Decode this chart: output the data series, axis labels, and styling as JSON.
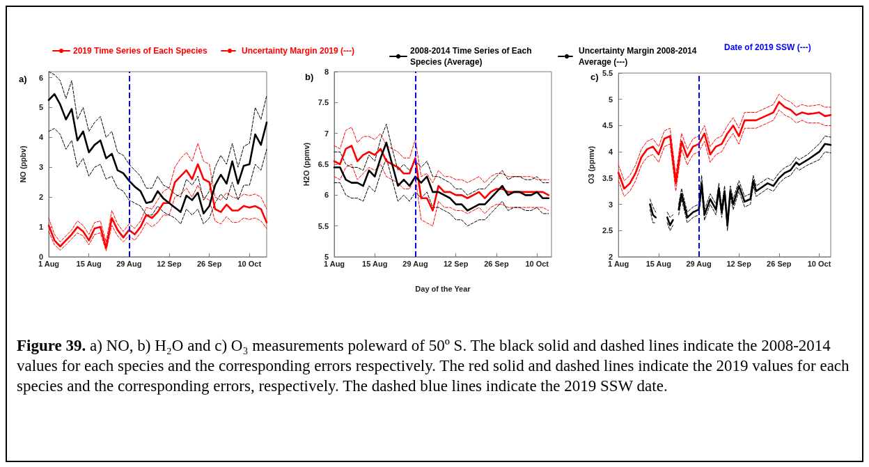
{
  "chart_data": [
    {
      "type": "line",
      "title": "a)",
      "ylabel": "NO (ppbv)",
      "legend": "top",
      "grid": false,
      "x": [
        "--08-01",
        "--08-03",
        "--08-05",
        "--08-07",
        "--08-09",
        "--08-11",
        "--08-13",
        "--08-15",
        "--08-17",
        "--08-19",
        "--08-21",
        "--08-23",
        "--08-25",
        "--08-27",
        "--08-29",
        "--08-31",
        "--09-02",
        "--09-04",
        "--09-06",
        "--09-08",
        "--09-10",
        "--09-12",
        "--09-14",
        "--09-16",
        "--09-18",
        "--09-20",
        "--09-22",
        "--09-24",
        "--09-26",
        "--09-28",
        "--09-30",
        "--10-02",
        "--10-04",
        "--10-06",
        "--10-08",
        "--10-10",
        "--10-12",
        "--10-14",
        "--10-16"
      ],
      "series": [
        {
          "name": "2019 Time Series of Each Species",
          "color": "#ff0000",
          "line_style": "solid",
          "values": [
            1.05,
            0.55,
            0.35,
            0.55,
            0.75,
            1.0,
            0.85,
            0.55,
            0.95,
            1.0,
            0.3,
            1.3,
            0.9,
            0.65,
            0.9,
            0.75,
            1.0,
            1.4,
            1.3,
            1.5,
            1.8,
            1.8,
            2.5,
            2.7,
            2.9,
            2.6,
            3.1,
            2.6,
            2.5,
            1.6,
            1.5,
            1.75,
            1.55,
            1.55,
            1.7,
            1.65,
            1.7,
            1.6,
            1.15
          ]
        },
        {
          "name": "Uncertainty Margin 2019 (---)",
          "color": "#ff0000",
          "line_style": "dashed",
          "values": [
            1.3,
            0.75,
            0.5,
            0.7,
            0.9,
            1.2,
            1.05,
            0.75,
            1.15,
            1.2,
            0.5,
            1.55,
            1.1,
            0.85,
            1.1,
            0.95,
            1.2,
            1.65,
            1.6,
            1.9,
            2.2,
            2.3,
            3.0,
            3.3,
            3.5,
            3.2,
            3.8,
            3.2,
            3.1,
            2.0,
            1.9,
            2.15,
            2.0,
            1.95,
            2.1,
            2.05,
            2.1,
            2.0,
            1.6
          ]
        },
        {
          "color": "#ff0000",
          "line_style": "dashed",
          "values": [
            0.85,
            0.4,
            0.22,
            0.4,
            0.6,
            0.8,
            0.7,
            0.4,
            0.75,
            0.8,
            0.2,
            1.05,
            0.7,
            0.5,
            0.7,
            0.55,
            0.8,
            1.15,
            1.0,
            1.15,
            1.4,
            1.4,
            2.0,
            2.1,
            2.3,
            2.0,
            2.4,
            2.0,
            1.9,
            1.2,
            1.1,
            1.35,
            1.15,
            1.15,
            1.3,
            1.25,
            1.3,
            1.2,
            0.95
          ]
        },
        {
          "name": "2008-2014 Time Series of Each Species (Average)",
          "color": "#000000",
          "line_style": "solid",
          "values": [
            5.25,
            5.45,
            5.1,
            4.6,
            4.95,
            3.9,
            4.2,
            3.5,
            3.75,
            3.9,
            3.3,
            3.45,
            2.9,
            2.8,
            2.55,
            2.35,
            2.2,
            1.8,
            1.85,
            2.2,
            1.95,
            1.8,
            1.65,
            1.5,
            2.05,
            1.9,
            2.15,
            1.45,
            1.7,
            2.4,
            2.75,
            2.45,
            3.2,
            2.45,
            3.05,
            3.1,
            4.1,
            3.75,
            4.5
          ]
        },
        {
          "name": "Uncertainty Margin 2008-2014 Average (---)",
          "color": "#000000",
          "line_style": "dashed",
          "values": [
            6.2,
            6.1,
            5.9,
            5.3,
            5.9,
            4.6,
            5.0,
            4.2,
            4.5,
            4.7,
            4.0,
            4.2,
            3.5,
            3.4,
            3.1,
            2.9,
            2.7,
            2.3,
            2.3,
            2.7,
            2.4,
            2.3,
            2.1,
            2.0,
            2.6,
            2.4,
            2.7,
            1.9,
            2.2,
            3.0,
            3.4,
            3.1,
            3.8,
            3.0,
            3.7,
            3.8,
            5.0,
            4.6,
            5.4
          ]
        },
        {
          "color": "#000000",
          "line_style": "dashed",
          "values": [
            4.2,
            4.3,
            4.1,
            3.6,
            3.9,
            3.0,
            3.3,
            2.7,
            3.0,
            3.1,
            2.6,
            2.7,
            2.3,
            2.2,
            1.9,
            1.8,
            1.7,
            1.4,
            1.4,
            1.7,
            1.5,
            1.4,
            1.3,
            1.1,
            1.6,
            1.4,
            1.6,
            1.1,
            1.3,
            1.8,
            2.1,
            1.9,
            2.5,
            1.9,
            2.4,
            2.4,
            3.1,
            2.9,
            3.6
          ]
        }
      ],
      "xlim": [
        "--08-01",
        "--10-16"
      ],
      "xticks": [
        {
          "value": "--08-01",
          "label": "1 Aug"
        },
        {
          "value": "--08-15",
          "label": "15 Aug"
        },
        {
          "value": "--08-29",
          "label": "29 Aug"
        },
        {
          "value": "--09-12",
          "label": "12 Sep"
        },
        {
          "value": "--09-26",
          "label": "26 Sep"
        },
        {
          "value": "--10-10",
          "label": "10 Oct"
        }
      ],
      "ylim": [
        0,
        6.2
      ],
      "yticks": [
        0,
        1,
        2,
        3,
        4,
        5,
        6
      ],
      "ref_lines": [
        {
          "axis": "x",
          "value": "--08-29",
          "label": "Date of 2019 SSW (---)",
          "color": "#0000ff",
          "line_style": "dashed"
        }
      ],
      "annotations": [
        "Figure 39.",
        "a) NO, b) H₂O and c) O₃ measurements poleward of 50º S. The black solid and dashed lines indicate the 2008-2014 values for each species and the corresponding errors respectively. The red solid and dashed lines indicate the 2019 values for each species and the corresponding errors, respectively. The dashed blue lines indicate the 2019 SSW date."
      ]
    },
    {
      "type": "line",
      "title": "b)",
      "ylabel": "H2O (ppmv)",
      "xlabel": "Day of the Year",
      "grid": false,
      "x": [
        "--08-01",
        "--08-03",
        "--08-05",
        "--08-07",
        "--08-09",
        "--08-11",
        "--08-13",
        "--08-15",
        "--08-17",
        "--08-19",
        "--08-21",
        "--08-23",
        "--08-25",
        "--08-27",
        "--08-29",
        "--08-31",
        "--09-02",
        "--09-04",
        "--09-06",
        "--09-08",
        "--09-10",
        "--09-12",
        "--09-14",
        "--09-16",
        "--09-18",
        "--09-20",
        "--09-22",
        "--09-24",
        "--09-26",
        "--09-28",
        "--09-30",
        "--10-02",
        "--10-04",
        "--10-06",
        "--10-08",
        "--10-10",
        "--10-12",
        "--10-14"
      ],
      "series": [
        {
          "color": "#ff0000",
          "line_style": "solid",
          "values": [
            6.55,
            6.5,
            6.75,
            6.8,
            6.55,
            6.65,
            6.7,
            6.65,
            6.75,
            6.55,
            6.5,
            6.45,
            6.35,
            6.35,
            6.6,
            5.95,
            5.95,
            5.75,
            6.15,
            6.05,
            6.05,
            6.0,
            6.0,
            5.95,
            6.0,
            6.05,
            5.95,
            6.05,
            6.1,
            6.1,
            6.05,
            6.05,
            6.05,
            6.05,
            6.05,
            6.05,
            6.05,
            6.0
          ]
        },
        {
          "color": "#ff0000",
          "line_style": "dashed",
          "values": [
            6.8,
            6.75,
            7.05,
            7.1,
            6.85,
            6.95,
            6.95,
            6.9,
            7.0,
            6.8,
            6.75,
            6.7,
            6.6,
            6.6,
            6.9,
            6.3,
            6.35,
            6.2,
            6.4,
            6.3,
            6.3,
            6.25,
            6.25,
            6.2,
            6.25,
            6.3,
            6.2,
            6.3,
            6.35,
            6.35,
            6.3,
            6.3,
            6.3,
            6.3,
            6.3,
            6.25,
            6.25,
            6.25
          ]
        },
        {
          "color": "#ff0000",
          "line_style": "dashed",
          "values": [
            6.3,
            6.25,
            6.45,
            6.5,
            6.25,
            6.35,
            6.45,
            6.4,
            6.5,
            6.3,
            6.25,
            6.2,
            6.1,
            6.1,
            6.3,
            5.6,
            5.55,
            5.5,
            5.9,
            5.8,
            5.8,
            5.75,
            5.75,
            5.7,
            5.75,
            5.8,
            5.7,
            5.8,
            5.85,
            5.85,
            5.8,
            5.8,
            5.8,
            5.8,
            5.8,
            5.8,
            5.8,
            5.75
          ]
        },
        {
          "color": "#000000",
          "line_style": "solid",
          "values": [
            6.45,
            6.45,
            6.25,
            6.2,
            6.2,
            6.15,
            6.4,
            6.3,
            6.6,
            6.85,
            6.5,
            6.15,
            6.25,
            6.15,
            6.3,
            6.2,
            6.3,
            6.05,
            6.05,
            6.0,
            5.95,
            5.85,
            5.85,
            5.75,
            5.8,
            5.85,
            5.85,
            5.95,
            6.05,
            6.15,
            6.0,
            6.05,
            6.05,
            6.0,
            6.0,
            6.05,
            5.95,
            5.95
          ]
        },
        {
          "color": "#000000",
          "line_style": "dashed",
          "values": [
            6.7,
            6.7,
            6.5,
            6.45,
            6.45,
            6.4,
            6.65,
            6.55,
            6.9,
            7.15,
            6.75,
            6.4,
            6.5,
            6.4,
            6.55,
            6.45,
            6.55,
            6.3,
            6.3,
            6.25,
            6.2,
            6.1,
            6.1,
            6.0,
            6.05,
            6.1,
            6.1,
            6.2,
            6.3,
            6.4,
            6.25,
            6.3,
            6.3,
            6.25,
            6.25,
            6.3,
            6.2,
            6.2
          ]
        },
        {
          "color": "#000000",
          "line_style": "dashed",
          "values": [
            6.2,
            6.2,
            6.0,
            5.95,
            5.95,
            5.9,
            6.15,
            6.05,
            6.35,
            6.6,
            6.25,
            5.9,
            6.0,
            5.9,
            6.05,
            5.95,
            6.05,
            5.8,
            5.8,
            5.75,
            5.7,
            5.6,
            5.6,
            5.5,
            5.55,
            5.6,
            5.6,
            5.7,
            5.8,
            5.9,
            5.75,
            5.8,
            5.8,
            5.75,
            5.75,
            5.8,
            5.7,
            5.7
          ]
        }
      ],
      "xlim": [
        "--08-01",
        "--10-15"
      ],
      "xticks": [
        {
          "value": "--08-01",
          "label": "1 Aug"
        },
        {
          "value": "--08-15",
          "label": "15 Aug"
        },
        {
          "value": "--08-29",
          "label": "29 Aug"
        },
        {
          "value": "--09-12",
          "label": "12 Sep"
        },
        {
          "value": "--09-26",
          "label": "26 Sep"
        },
        {
          "value": "--10-10",
          "label": "10 Oct"
        }
      ],
      "ylim": [
        5,
        8
      ],
      "yticks": [
        5,
        5.5,
        6,
        6.5,
        7,
        7.5,
        8
      ],
      "ref_lines": [
        {
          "axis": "x",
          "value": "--08-29",
          "color": "#0000ff",
          "line_style": "dashed"
        }
      ]
    },
    {
      "type": "line",
      "title": "c)",
      "ylabel": "O3 (ppmv)",
      "grid": false,
      "x": [
        "--08-01",
        "--08-03",
        "--08-05",
        "--08-07",
        "--08-09",
        "--08-11",
        "--08-13",
        "--08-15",
        "--08-17",
        "--08-19",
        "--08-21",
        "--08-23",
        "--08-25",
        "--08-27",
        "--08-29",
        "--08-31",
        "--09-02",
        "--09-04",
        "--09-06",
        "--09-08",
        "--09-10",
        "--09-12",
        "--09-14",
        "--09-16",
        "--09-18",
        "--09-20",
        "--09-22",
        "--09-24",
        "--09-26",
        "--09-28",
        "--09-30",
        "--10-02",
        "--10-04",
        "--10-06",
        "--10-08",
        "--10-10",
        "--10-12",
        "--10-14"
      ],
      "series": [
        {
          "color": "#ff0000",
          "line_style": "solid",
          "values": [
            3.6,
            3.3,
            3.4,
            3.6,
            3.9,
            4.05,
            4.1,
            3.95,
            4.25,
            4.3,
            3.4,
            4.2,
            3.9,
            4.1,
            4.15,
            4.35,
            3.95,
            4.1,
            4.15,
            4.35,
            4.5,
            4.3,
            4.6,
            4.6,
            4.6,
            4.65,
            4.7,
            4.75,
            4.95,
            4.85,
            4.8,
            4.7,
            4.75,
            4.72,
            4.73,
            4.75,
            4.68,
            4.7
          ]
        },
        {
          "color": "#ff0000",
          "line_style": "dashed",
          "values": [
            3.75,
            3.45,
            3.55,
            3.75,
            4.05,
            4.2,
            4.25,
            4.1,
            4.4,
            4.45,
            3.55,
            4.35,
            4.05,
            4.25,
            4.3,
            4.5,
            4.1,
            4.25,
            4.3,
            4.5,
            4.65,
            4.45,
            4.75,
            4.75,
            4.75,
            4.8,
            4.85,
            4.9,
            5.1,
            5.0,
            4.95,
            4.85,
            4.9,
            4.87,
            4.88,
            4.9,
            4.85,
            4.85
          ]
        },
        {
          "color": "#ff0000",
          "line_style": "dashed",
          "values": [
            3.45,
            3.15,
            3.25,
            3.45,
            3.75,
            3.9,
            3.95,
            3.8,
            4.1,
            4.15,
            3.25,
            4.05,
            3.75,
            3.95,
            4.0,
            4.2,
            3.8,
            3.95,
            4.0,
            4.2,
            4.35,
            4.15,
            4.45,
            4.45,
            4.45,
            4.5,
            4.55,
            4.6,
            4.8,
            4.7,
            4.65,
            4.55,
            4.6,
            4.55,
            4.55,
            4.55,
            4.5,
            4.5
          ]
        },
        {
          "color": "#000000",
          "line_style": "solid",
          "x": [
            "--08-12",
            "--08-13",
            "--08-14",
            "--08-15",
            "--08-18",
            "--08-19",
            "--08-20",
            "--08-21",
            "--08-22",
            "--08-23",
            "--08-25",
            "--08-27",
            "--08-29",
            "--08-30",
            "--08-31",
            "--09-02",
            "--09-04",
            "--09-05",
            "--09-06",
            "--09-07",
            "--09-08",
            "--09-09",
            "--09-10",
            "--09-12",
            "--09-14",
            "--09-16",
            "--09-17",
            "--09-18",
            "--09-22",
            "--09-24",
            "--09-26",
            "--09-28",
            "--09-30",
            "--10-02",
            "--10-03",
            "--10-06",
            "--10-10",
            "--10-12",
            "--10-14"
          ],
          "values": [
            3.0,
            2.8,
            2.75,
            null,
            2.75,
            2.6,
            2.7,
            null,
            2.9,
            3.2,
            2.75,
            2.85,
            2.9,
            3.4,
            2.8,
            3.1,
            2.9,
            3.3,
            2.85,
            3.25,
            2.6,
            3.25,
            3.0,
            3.35,
            3.05,
            3.1,
            3.45,
            3.25,
            3.4,
            3.35,
            3.5,
            3.6,
            3.65,
            3.8,
            3.75,
            3.85,
            4.0,
            4.15,
            4.13
          ]
        },
        {
          "color": "#000000",
          "line_style": "dashed",
          "x": [
            "--08-12",
            "--08-13",
            "--08-14",
            "--08-15",
            "--08-18",
            "--08-19",
            "--08-20",
            "--08-21",
            "--08-22",
            "--08-23",
            "--08-25",
            "--08-27",
            "--08-29",
            "--08-30",
            "--08-31",
            "--09-02",
            "--09-04",
            "--09-05",
            "--09-06",
            "--09-07",
            "--09-08",
            "--09-09",
            "--09-10",
            "--09-12",
            "--09-14",
            "--09-16",
            "--09-17",
            "--09-18",
            "--09-22",
            "--09-24",
            "--09-26",
            "--09-28",
            "--09-30",
            "--10-02",
            "--10-03",
            "--10-06",
            "--10-10",
            "--10-12",
            "--10-14"
          ],
          "values": [
            3.1,
            2.95,
            2.85,
            null,
            2.85,
            2.75,
            2.8,
            null,
            3.0,
            3.3,
            2.85,
            2.95,
            3.0,
            3.55,
            2.9,
            3.2,
            3.0,
            3.4,
            2.95,
            3.35,
            2.7,
            3.35,
            3.1,
            3.45,
            3.15,
            3.2,
            3.55,
            3.35,
            3.5,
            3.45,
            3.6,
            3.7,
            3.75,
            3.9,
            3.85,
            3.95,
            4.15,
            4.3,
            4.28
          ]
        },
        {
          "color": "#000000",
          "line_style": "dashed",
          "x": [
            "--08-12",
            "--08-13",
            "--08-14",
            "--08-15",
            "--08-18",
            "--08-19",
            "--08-20",
            "--08-21",
            "--08-22",
            "--08-23",
            "--08-25",
            "--08-27",
            "--08-29",
            "--08-30",
            "--08-31",
            "--09-02",
            "--09-04",
            "--09-05",
            "--09-06",
            "--09-07",
            "--09-08",
            "--09-09",
            "--09-10",
            "--09-12",
            "--09-14",
            "--09-16",
            "--09-17",
            "--09-18",
            "--09-22",
            "--09-24",
            "--09-26",
            "--09-28",
            "--09-30",
            "--10-02",
            "--10-03",
            "--10-06",
            "--10-10",
            "--10-12",
            "--10-14"
          ],
          "values": [
            2.9,
            2.65,
            2.65,
            null,
            2.65,
            2.5,
            2.6,
            null,
            2.8,
            3.1,
            2.65,
            2.75,
            2.8,
            3.25,
            2.7,
            3.0,
            2.8,
            3.2,
            2.75,
            3.15,
            2.5,
            3.15,
            2.9,
            3.25,
            2.95,
            3.0,
            3.35,
            3.15,
            3.3,
            3.25,
            3.4,
            3.5,
            3.55,
            3.7,
            3.65,
            3.75,
            3.85,
            4.0,
            3.98
          ]
        }
      ],
      "xlim": [
        "--08-01",
        "--10-14"
      ],
      "xticks": [
        {
          "value": "--08-01",
          "label": "1 Aug"
        },
        {
          "value": "--08-15",
          "label": "15 Aug"
        },
        {
          "value": "--08-29",
          "label": "29 Aug"
        },
        {
          "value": "--09-12",
          "label": "12 Sep"
        },
        {
          "value": "--09-26",
          "label": "26 Sep"
        },
        {
          "value": "--10-10",
          "label": "10 Oct"
        }
      ],
      "ylim": [
        2,
        5.5
      ],
      "yticks": [
        2,
        2.5,
        3,
        3.5,
        4,
        4.5,
        5,
        5.5
      ],
      "ref_lines": [
        {
          "axis": "x",
          "value": "--08-29",
          "color": "#0000ff",
          "line_style": "dashed"
        }
      ]
    }
  ]
}
